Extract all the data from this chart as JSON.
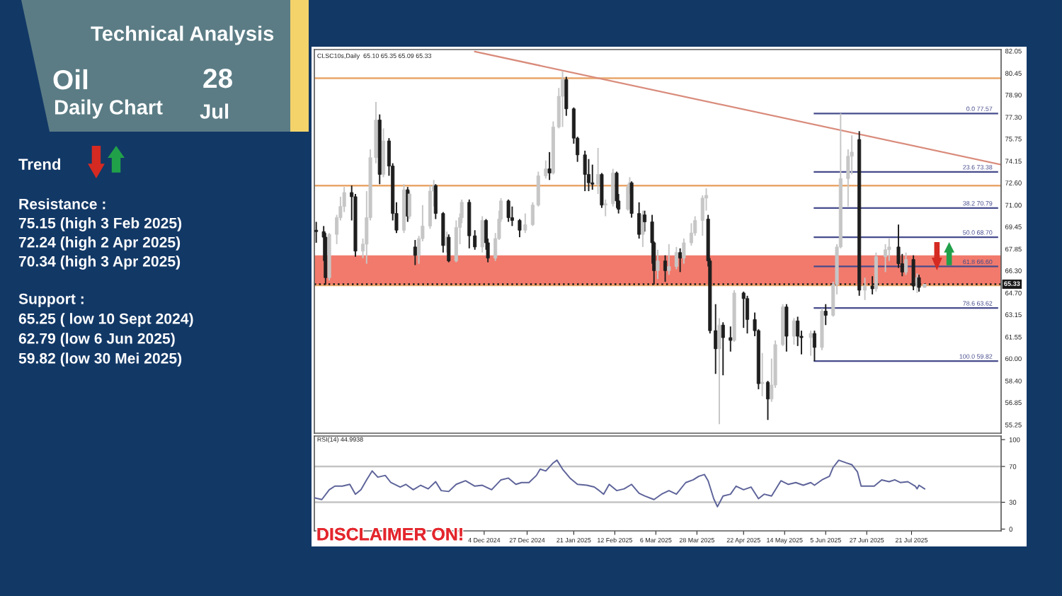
{
  "chart_data": [
    {
      "type": "other",
      "title": "Technical Analysis",
      "annotations": [
        "Oil",
        "28",
        "Daily Chart",
        "Jul",
        "Trend",
        "Resistance :",
        "75.15 (high 3 Feb 2025)",
        "72.24 (high 2 Apr 2025)",
        "70.34 (high 3 Apr 2025)",
        "Support :",
        "65.25 ( low 10 Sept 2024)",
        "62.79 (low 6 Jun 2025)",
        "59.82 (low 30 Mei 2025)"
      ]
    },
    {
      "type": "candlestick",
      "title": "CLSC10s,Daily  65.10 65.35 65.09 65.33",
      "tick_labels": "y",
      "x": [
        "2024-09-05",
        "2024-09-09",
        "2024-09-10",
        "2024-09-12",
        "2024-09-16",
        "2024-09-18",
        "2024-09-20",
        "2024-09-24",
        "2024-09-26",
        "2024-09-30",
        "2024-10-02",
        "2024-10-04",
        "2024-10-07",
        "2024-10-09",
        "2024-10-11",
        "2024-10-14",
        "2024-10-16",
        "2024-10-18",
        "2024-10-22",
        "2024-10-24",
        "2024-10-25",
        "2024-10-28",
        "2024-10-30",
        "2024-11-01",
        "2024-11-05",
        "2024-11-07",
        "2024-11-08",
        "2024-11-12",
        "2024-11-14",
        "2024-11-15",
        "2024-11-19",
        "2024-11-21",
        "2024-11-22",
        "2024-11-26",
        "2024-11-29",
        "2024-12-03",
        "2024-12-05",
        "2024-12-06",
        "2024-12-10",
        "2024-12-12",
        "2024-12-13",
        "2024-12-17",
        "2024-12-19",
        "2024-12-23",
        "2024-12-26",
        "2024-12-30",
        "2025-01-02",
        "2025-01-06",
        "2025-01-08",
        "2025-01-10",
        "2025-01-13",
        "2025-01-15",
        "2025-01-17",
        "2025-01-21",
        "2025-01-23",
        "2025-01-27",
        "2025-01-29",
        "2025-01-31",
        "2025-02-03",
        "2025-02-05",
        "2025-02-07",
        "2025-02-11",
        "2025-02-13",
        "2025-02-14",
        "2025-02-19",
        "2025-02-20",
        "2025-02-21",
        "2025-02-25",
        "2025-02-27",
        "2025-02-28",
        "2025-03-04",
        "2025-03-05",
        "2025-03-07",
        "2025-03-11",
        "2025-03-13",
        "2025-03-17",
        "2025-03-19",
        "2025-03-21",
        "2025-03-25",
        "2025-03-27",
        "2025-03-31",
        "2025-04-02",
        "2025-04-03",
        "2025-04-04",
        "2025-04-07",
        "2025-04-09",
        "2025-04-11",
        "2025-04-15",
        "2025-04-17",
        "2025-04-22",
        "2025-04-24",
        "2025-04-28",
        "2025-04-30",
        "2025-05-02",
        "2025-05-05",
        "2025-05-07",
        "2025-05-09",
        "2025-05-13",
        "2025-05-15",
        "2025-05-19",
        "2025-05-21",
        "2025-05-23",
        "2025-05-28",
        "2025-05-30",
        "2025-06-03",
        "2025-06-05",
        "2025-06-09",
        "2025-06-11",
        "2025-06-13",
        "2025-06-17",
        "2025-06-19",
        "2025-06-23",
        "2025-06-26",
        "2025-06-30",
        "2025-07-02",
        "2025-07-07",
        "2025-07-09",
        "2025-07-14",
        "2025-07-16",
        "2025-07-18",
        "2025-07-22",
        "2025-07-24",
        "2025-07-25",
        "2025-07-28"
      ],
      "ohlc": [
        [
          69.2,
          69.8,
          68.3,
          69.1
        ],
        [
          69.1,
          69.5,
          67.0,
          68.7
        ],
        [
          68.7,
          69.0,
          65.3,
          65.8
        ],
        [
          65.8,
          69.0,
          65.6,
          68.9
        ],
        [
          68.9,
          70.3,
          68.2,
          70.1
        ],
        [
          70.1,
          71.6,
          69.9,
          70.9
        ],
        [
          70.9,
          72.3,
          70.5,
          71.9
        ],
        [
          71.9,
          72.4,
          69.9,
          71.6
        ],
        [
          71.6,
          71.8,
          67.3,
          67.7
        ],
        [
          67.7,
          68.6,
          67.2,
          68.2
        ],
        [
          68.2,
          72.0,
          66.8,
          70.1
        ],
        [
          70.1,
          75.0,
          69.9,
          74.4
        ],
        [
          74.4,
          78.4,
          74.0,
          77.1
        ],
        [
          77.1,
          77.5,
          72.5,
          73.2
        ],
        [
          73.2,
          76.5,
          73.0,
          75.6
        ],
        [
          75.6,
          75.8,
          73.1,
          73.8
        ],
        [
          73.8,
          74.0,
          69.9,
          70.4
        ],
        [
          70.4,
          71.2,
          69.0,
          69.2
        ],
        [
          69.2,
          72.5,
          69.0,
          72.1
        ],
        [
          72.1,
          72.3,
          69.8,
          70.2
        ],
        [
          70.2,
          72.0,
          70.0,
          71.8
        ],
        [
          68.0,
          68.5,
          66.7,
          67.4
        ],
        [
          67.4,
          68.8,
          66.8,
          68.6
        ],
        [
          68.6,
          71.0,
          68.4,
          69.5
        ],
        [
          69.5,
          72.4,
          69.3,
          72.0
        ],
        [
          72.0,
          72.8,
          70.9,
          72.4
        ],
        [
          72.4,
          72.5,
          70.0,
          70.4
        ],
        [
          70.4,
          70.5,
          67.6,
          68.1
        ],
        [
          68.1,
          69.1,
          67.6,
          68.7
        ],
        [
          68.7,
          68.9,
          66.9,
          67.0
        ],
        [
          67.0,
          69.9,
          66.9,
          69.4
        ],
        [
          69.4,
          70.4,
          68.2,
          70.1
        ],
        [
          70.1,
          71.4,
          69.7,
          71.2
        ],
        [
          71.2,
          71.4,
          67.9,
          68.8
        ],
        [
          68.8,
          69.2,
          67.8,
          68.0
        ],
        [
          68.0,
          70.2,
          67.6,
          69.9
        ],
        [
          69.9,
          70.0,
          67.8,
          68.3
        ],
        [
          68.3,
          68.6,
          66.9,
          67.2
        ],
        [
          67.2,
          69.0,
          67.0,
          68.6
        ],
        [
          68.6,
          70.6,
          68.5,
          70.0
        ],
        [
          70.0,
          71.5,
          69.8,
          71.3
        ],
        [
          71.3,
          71.4,
          69.8,
          70.1
        ],
        [
          70.1,
          70.9,
          69.5,
          69.9
        ],
        [
          69.9,
          70.0,
          68.7,
          69.2
        ],
        [
          69.2,
          70.4,
          69.0,
          69.6
        ],
        [
          69.6,
          71.2,
          69.5,
          71.0
        ],
        [
          71.0,
          73.4,
          70.9,
          73.1
        ],
        [
          73.1,
          74.2,
          72.9,
          73.6
        ],
        [
          73.6,
          74.8,
          72.8,
          73.3
        ],
        [
          73.3,
          77.0,
          73.2,
          76.6
        ],
        [
          76.6,
          79.4,
          76.5,
          78.8
        ],
        [
          78.8,
          80.6,
          76.6,
          80.0
        ],
        [
          80.0,
          80.2,
          77.4,
          77.9
        ],
        [
          77.9,
          78.0,
          75.4,
          75.8
        ],
        [
          75.8,
          75.9,
          74.1,
          74.6
        ],
        [
          74.6,
          74.9,
          72.0,
          73.2
        ],
        [
          73.2,
          74.3,
          72.0,
          72.6
        ],
        [
          72.6,
          73.9,
          72.1,
          72.5
        ],
        [
          72.5,
          75.1,
          71.8,
          73.2
        ],
        [
          73.2,
          73.3,
          70.8,
          71.0
        ],
        [
          71.0,
          71.4,
          70.2,
          71.1
        ],
        [
          71.1,
          73.6,
          70.9,
          73.3
        ],
        [
          73.3,
          73.4,
          70.8,
          71.3
        ],
        [
          71.3,
          71.8,
          70.4,
          70.7
        ],
        [
          70.7,
          72.5,
          70.6,
          72.3
        ],
        [
          72.3,
          73.0,
          71.8,
          72.6
        ],
        [
          72.6,
          72.7,
          70.1,
          70.4
        ],
        [
          70.4,
          71.2,
          68.6,
          68.9
        ],
        [
          68.9,
          70.6,
          68.0,
          70.3
        ],
        [
          70.3,
          70.6,
          69.1,
          69.8
        ],
        [
          69.8,
          70.3,
          66.8,
          68.3
        ],
        [
          68.3,
          68.4,
          65.3,
          66.3
        ],
        [
          66.3,
          67.8,
          65.7,
          67.0
        ],
        [
          67.0,
          67.4,
          65.5,
          66.3
        ],
        [
          66.3,
          68.2,
          66.0,
          66.6
        ],
        [
          66.6,
          68.0,
          66.4,
          67.6
        ],
        [
          67.6,
          67.9,
          66.2,
          67.2
        ],
        [
          67.2,
          68.6,
          66.8,
          68.3
        ],
        [
          68.3,
          69.7,
          68.1,
          69.0
        ],
        [
          69.0,
          70.2,
          68.8,
          69.9
        ],
        [
          69.9,
          71.7,
          68.8,
          71.5
        ],
        [
          71.5,
          72.2,
          70.6,
          71.7
        ],
        [
          70.0,
          70.3,
          66.6,
          67.0
        ],
        [
          67.0,
          67.2,
          61.8,
          62.0
        ],
        [
          62.0,
          63.9,
          58.9,
          60.7
        ],
        [
          60.7,
          62.9,
          55.3,
          62.4
        ],
        [
          62.4,
          62.6,
          58.8,
          61.5
        ],
        [
          61.5,
          62.3,
          60.5,
          61.3
        ],
        [
          61.3,
          64.9,
          61.2,
          64.7
        ],
        [
          64.7,
          64.8,
          62.2,
          64.3
        ],
        [
          64.3,
          64.5,
          61.8,
          62.8
        ],
        [
          62.8,
          63.3,
          61.6,
          62.0
        ],
        [
          62.0,
          62.1,
          57.8,
          58.2
        ],
        [
          58.2,
          60.4,
          57.3,
          58.3
        ],
        [
          58.3,
          58.4,
          55.6,
          57.1
        ],
        [
          57.1,
          60.0,
          56.9,
          58.1
        ],
        [
          58.1,
          61.3,
          57.9,
          61.0
        ],
        [
          61.0,
          63.9,
          60.9,
          63.7
        ],
        [
          63.7,
          63.9,
          60.5,
          61.6
        ],
        [
          61.6,
          62.9,
          61.0,
          62.7
        ],
        [
          62.7,
          63.0,
          60.9,
          61.6
        ],
        [
          61.6,
          62.0,
          60.3,
          61.5
        ],
        [
          61.5,
          62.0,
          60.2,
          61.8
        ],
        [
          61.8,
          62.0,
          59.82,
          60.8
        ],
        [
          60.8,
          63.6,
          60.6,
          63.4
        ],
        [
          63.4,
          63.9,
          62.4,
          63.1
        ],
        [
          63.1,
          65.5,
          63.0,
          65.3
        ],
        [
          65.3,
          68.2,
          64.6,
          68.0
        ],
        [
          68.0,
          77.57,
          67.9,
          72.9
        ],
        [
          72.9,
          75.0,
          70.9,
          74.5
        ],
        [
          74.5,
          76.0,
          73.2,
          74.8
        ],
        [
          75.7,
          76.3,
          64.5,
          64.9
        ],
        [
          64.9,
          65.8,
          64.2,
          65.2
        ],
        [
          65.2,
          65.9,
          64.6,
          65.0
        ],
        [
          65.0,
          67.6,
          64.8,
          67.3
        ],
        [
          67.3,
          68.2,
          66.2,
          67.8
        ],
        [
          67.8,
          68.6,
          67.0,
          68.0
        ],
        [
          68.0,
          69.6,
          66.5,
          66.8
        ],
        [
          66.8,
          67.5,
          65.9,
          66.2
        ],
        [
          66.2,
          67.6,
          66.0,
          67.1
        ],
        [
          67.1,
          67.4,
          64.9,
          65.2
        ],
        [
          65.2,
          66.1,
          64.7,
          65.8
        ],
        [
          65.8,
          66.0,
          64.8,
          65.1
        ],
        [
          65.1,
          65.35,
          65.09,
          65.33
        ]
      ],
      "colors": [
        "#1e1e1e",
        "#1e1e1e",
        "#1e1e1e",
        "#c6c6c6",
        "#c6c6c6",
        "#c6c6c6",
        "#c6c6c6",
        "#1e1e1e",
        "#1e1e1e",
        "#c6c6c6",
        "#c6c6c6",
        "#c6c6c6",
        "#c6c6c6",
        "#1e1e1e",
        "#c6c6c6",
        "#1e1e1e",
        "#1e1e1e",
        "#1e1e1e",
        "#c6c6c6",
        "#1e1e1e",
        "#c6c6c6",
        "#1e1e1e",
        "#c6c6c6",
        "#c6c6c6",
        "#c6c6c6",
        "#c6c6c6",
        "#1e1e1e",
        "#1e1e1e",
        "#c6c6c6",
        "#1e1e1e",
        "#c6c6c6",
        "#c6c6c6",
        "#c6c6c6",
        "#1e1e1e",
        "#1e1e1e",
        "#c6c6c6",
        "#1e1e1e",
        "#1e1e1e",
        "#c6c6c6",
        "#c6c6c6",
        "#c6c6c6",
        "#1e1e1e",
        "#1e1e1e",
        "#1e1e1e",
        "#c6c6c6",
        "#c6c6c6",
        "#c6c6c6",
        "#c6c6c6",
        "#1e1e1e",
        "#c6c6c6",
        "#c6c6c6",
        "#c6c6c6",
        "#1e1e1e",
        "#1e1e1e",
        "#1e1e1e",
        "#1e1e1e",
        "#1e1e1e",
        "#1e1e1e",
        "#c6c6c6",
        "#1e1e1e",
        "#c6c6c6",
        "#c6c6c6",
        "#1e1e1e",
        "#1e1e1e",
        "#c6c6c6",
        "#c6c6c6",
        "#1e1e1e",
        "#1e1e1e",
        "#c6c6c6",
        "#1e1e1e",
        "#1e1e1e",
        "#1e1e1e",
        "#c6c6c6",
        "#1e1e1e",
        "#c6c6c6",
        "#c6c6c6",
        "#1e1e1e",
        "#c6c6c6",
        "#c6c6c6",
        "#c6c6c6",
        "#c6c6c6",
        "#c6c6c6",
        "#1e1e1e",
        "#1e1e1e",
        "#1e1e1e",
        "#c6c6c6",
        "#1e1e1e",
        "#1e1e1e",
        "#c6c6c6",
        "#1e1e1e",
        "#1e1e1e",
        "#1e1e1e",
        "#1e1e1e",
        "#c6c6c6",
        "#1e1e1e",
        "#c6c6c6",
        "#c6c6c6",
        "#c6c6c6",
        "#1e1e1e",
        "#c6c6c6",
        "#1e1e1e",
        "#1e1e1e",
        "#c6c6c6",
        "#1e1e1e",
        "#c6c6c6",
        "#1e1e1e",
        "#c6c6c6",
        "#c6c6c6",
        "#c6c6c6",
        "#c6c6c6",
        "#c6c6c6",
        "#1e1e1e",
        "#c6c6c6",
        "#1e1e1e",
        "#c6c6c6",
        "#c6c6c6",
        "#c6c6c6",
        "#1e1e1e",
        "#1e1e1e",
        "#c6c6c6",
        "#1e1e1e",
        "#c6c6c6",
        "#1e1e1e",
        "#c6c6c6"
      ],
      "series": [
        {
          "type": "line",
          "x": [
            "2024-11-29",
            "2025-09-07"
          ],
          "values": [
            82.0,
            73.9
          ],
          "color": "#d98b7b"
        },
        {
          "type": "line",
          "name": "0.0 77.57",
          "x": [
            "2025-05-30",
            "2025-09-05"
          ],
          "values": [
            77.57,
            77.57
          ],
          "color": "#474c8c"
        },
        {
          "type": "line",
          "name": "23.6 73.38",
          "x": [
            "2025-05-30",
            "2025-09-05"
          ],
          "values": [
            73.38,
            73.38
          ],
          "color": "#474c8c"
        },
        {
          "type": "line",
          "name": "38.2 70.79",
          "x": [
            "2025-05-30",
            "2025-09-05"
          ],
          "values": [
            70.79,
            70.79
          ],
          "color": "#474c8c"
        },
        {
          "type": "line",
          "name": "50.0 68.70",
          "x": [
            "2025-05-30",
            "2025-09-05"
          ],
          "values": [
            68.7,
            68.7
          ],
          "color": "#474c8c"
        },
        {
          "type": "line",
          "name": "61.8 66.60",
          "x": [
            "2025-05-30",
            "2025-09-05"
          ],
          "values": [
            66.6,
            66.6
          ],
          "color": "#474c8c"
        },
        {
          "type": "line",
          "name": "78.6 63.62",
          "x": [
            "2025-05-30",
            "2025-09-05"
          ],
          "values": [
            63.62,
            63.62
          ],
          "color": "#474c8c"
        },
        {
          "type": "line",
          "name": "100.0 59.82",
          "x": [
            "2025-05-30",
            "2025-09-05"
          ],
          "values": [
            59.82,
            59.82
          ],
          "color": "#474c8c"
        }
      ],
      "bands": [
        {
          "axis": "y",
          "from": 65.25,
          "to": 67.4,
          "color": "#f27a6c"
        }
      ],
      "ref_lines": [
        {
          "axis": "y",
          "value": 80.1,
          "color": "#e9a66a"
        },
        {
          "axis": "y",
          "value": 72.4,
          "color": "#e9a66a"
        },
        {
          "axis": "y",
          "value": 65.25,
          "color": "#e9a66a"
        },
        {
          "axis": "y",
          "value": 65.33,
          "label": "65.33",
          "color": "#1a1a1a",
          "line_style": "dotted"
        }
      ],
      "xlim": [
        "2024-09-04",
        "2025-09-07"
      ],
      "ylim": [
        54.65,
        82.15
      ],
      "yticks": [
        {
          "value": 82.05,
          "label": "82.05"
        },
        {
          "value": 80.45,
          "label": "80.45"
        },
        {
          "value": 78.9,
          "label": "78.90"
        },
        {
          "value": 77.3,
          "label": "77.30"
        },
        {
          "value": 75.75,
          "label": "75.75"
        },
        {
          "value": 74.15,
          "label": "74.15"
        },
        {
          "value": 72.6,
          "label": "72.60"
        },
        {
          "value": 71.0,
          "label": "71.00"
        },
        {
          "value": 69.45,
          "label": "69.45"
        },
        {
          "value": 67.85,
          "label": "67.85"
        },
        {
          "value": 66.3,
          "label": "66.30"
        },
        {
          "value": 64.7,
          "label": "64.70"
        },
        {
          "value": 63.15,
          "label": "63.15"
        },
        {
          "value": 61.55,
          "label": "61.55"
        },
        {
          "value": 60.0,
          "label": "60.00"
        },
        {
          "value": 58.4,
          "label": "58.40"
        },
        {
          "value": 56.85,
          "label": "56.85"
        },
        {
          "value": 55.25,
          "label": "55.25"
        }
      ]
    },
    {
      "type": "line",
      "title": "RSI(14) 44.9938",
      "color": "#5d6399",
      "annotations": [
        "DISCLAIMER ON!"
      ],
      "x": [
        "2024-09-04",
        "2024-09-08",
        "2024-09-12",
        "2024-09-15",
        "2024-09-19",
        "2024-09-23",
        "2024-09-26",
        "2024-09-29",
        "2024-10-02",
        "2024-10-05",
        "2024-10-08",
        "2024-10-12",
        "2024-10-15",
        "2024-10-20",
        "2024-10-23",
        "2024-10-27",
        "2024-10-31",
        "2024-11-04",
        "2024-11-08",
        "2024-11-11",
        "2024-11-15",
        "2024-11-19",
        "2024-11-24",
        "2024-11-29",
        "2024-12-03",
        "2024-12-08",
        "2024-12-13",
        "2024-12-17",
        "2024-12-21",
        "2024-12-24",
        "2024-12-28",
        "2025-01-01",
        "2025-01-03",
        "2025-01-06",
        "2025-01-10",
        "2025-01-12",
        "2025-01-15",
        "2025-01-19",
        "2025-01-23",
        "2025-01-28",
        "2025-02-01",
        "2025-02-03",
        "2025-02-06",
        "2025-02-09",
        "2025-02-13",
        "2025-02-17",
        "2025-02-21",
        "2025-02-25",
        "2025-02-28",
        "2025-03-05",
        "2025-03-09",
        "2025-03-13",
        "2025-03-17",
        "2025-03-22",
        "2025-03-26",
        "2025-03-29",
        "2025-04-01",
        "2025-04-03",
        "2025-04-06",
        "2025-04-08",
        "2025-04-11",
        "2025-04-15",
        "2025-04-18",
        "2025-04-22",
        "2025-04-26",
        "2025-04-30",
        "2025-05-03",
        "2025-05-07",
        "2025-05-12",
        "2025-05-16",
        "2025-05-20",
        "2025-05-24",
        "2025-05-28",
        "2025-05-30",
        "2025-06-03",
        "2025-06-07",
        "2025-06-09",
        "2025-06-12",
        "2025-06-16",
        "2025-06-19",
        "2025-06-22",
        "2025-06-24",
        "2025-06-27",
        "2025-07-01",
        "2025-07-05",
        "2025-07-09",
        "2025-07-12",
        "2025-07-15",
        "2025-07-19",
        "2025-07-23",
        "2025-07-24",
        "2025-07-25",
        "2025-07-28"
      ],
      "values": [
        35,
        33,
        44,
        48,
        48,
        50,
        39,
        44,
        55,
        65,
        58,
        60,
        52,
        47,
        50,
        44,
        49,
        45,
        53,
        43,
        42,
        50,
        54,
        48,
        49,
        44,
        55,
        57,
        50,
        52,
        52,
        60,
        67,
        65,
        74,
        77,
        67,
        57,
        50,
        49,
        47,
        44,
        39,
        50,
        43,
        45,
        50,
        40,
        37,
        33,
        39,
        43,
        39,
        52,
        55,
        59,
        61,
        54,
        34,
        25,
        37,
        39,
        48,
        44,
        47,
        34,
        39,
        37,
        54,
        50,
        52,
        49,
        52,
        49,
        55,
        59,
        69,
        77,
        74,
        72,
        64,
        48,
        48,
        48,
        55,
        53,
        55,
        52,
        53,
        48,
        45,
        49,
        45
      ],
      "ref_lines": [
        {
          "axis": "y",
          "value": 70,
          "color": "#c4c4c4"
        },
        {
          "axis": "y",
          "value": 30,
          "color": "#c4c4c4"
        }
      ],
      "xlim": [
        "2024-09-04",
        "2025-09-07"
      ],
      "ylim": [
        -2,
        104
      ],
      "yticks": [
        100,
        70,
        30,
        0
      ],
      "xticks": [
        {
          "value": "2024-12-04",
          "label": "4 Dec 2024"
        },
        {
          "value": "2024-12-27",
          "label": "27 Dec 2024"
        },
        {
          "value": "2025-01-21",
          "label": "21 Jan 2025"
        },
        {
          "value": "2025-02-12",
          "label": "12 Feb 2025"
        },
        {
          "value": "2025-03-06",
          "label": "6 Mar 2025"
        },
        {
          "value": "2025-03-28",
          "label": "28 Mar 2025"
        },
        {
          "value": "2025-04-22",
          "label": "22 Apr 2025"
        },
        {
          "value": "2025-05-14",
          "label": "14 May 2025"
        },
        {
          "value": "2025-06-05",
          "label": "5 Jun 2025"
        },
        {
          "value": "2025-06-27",
          "label": "27 Jun 2025"
        },
        {
          "value": "2025-07-21",
          "label": "21 Jul 2025"
        }
      ]
    }
  ]
}
